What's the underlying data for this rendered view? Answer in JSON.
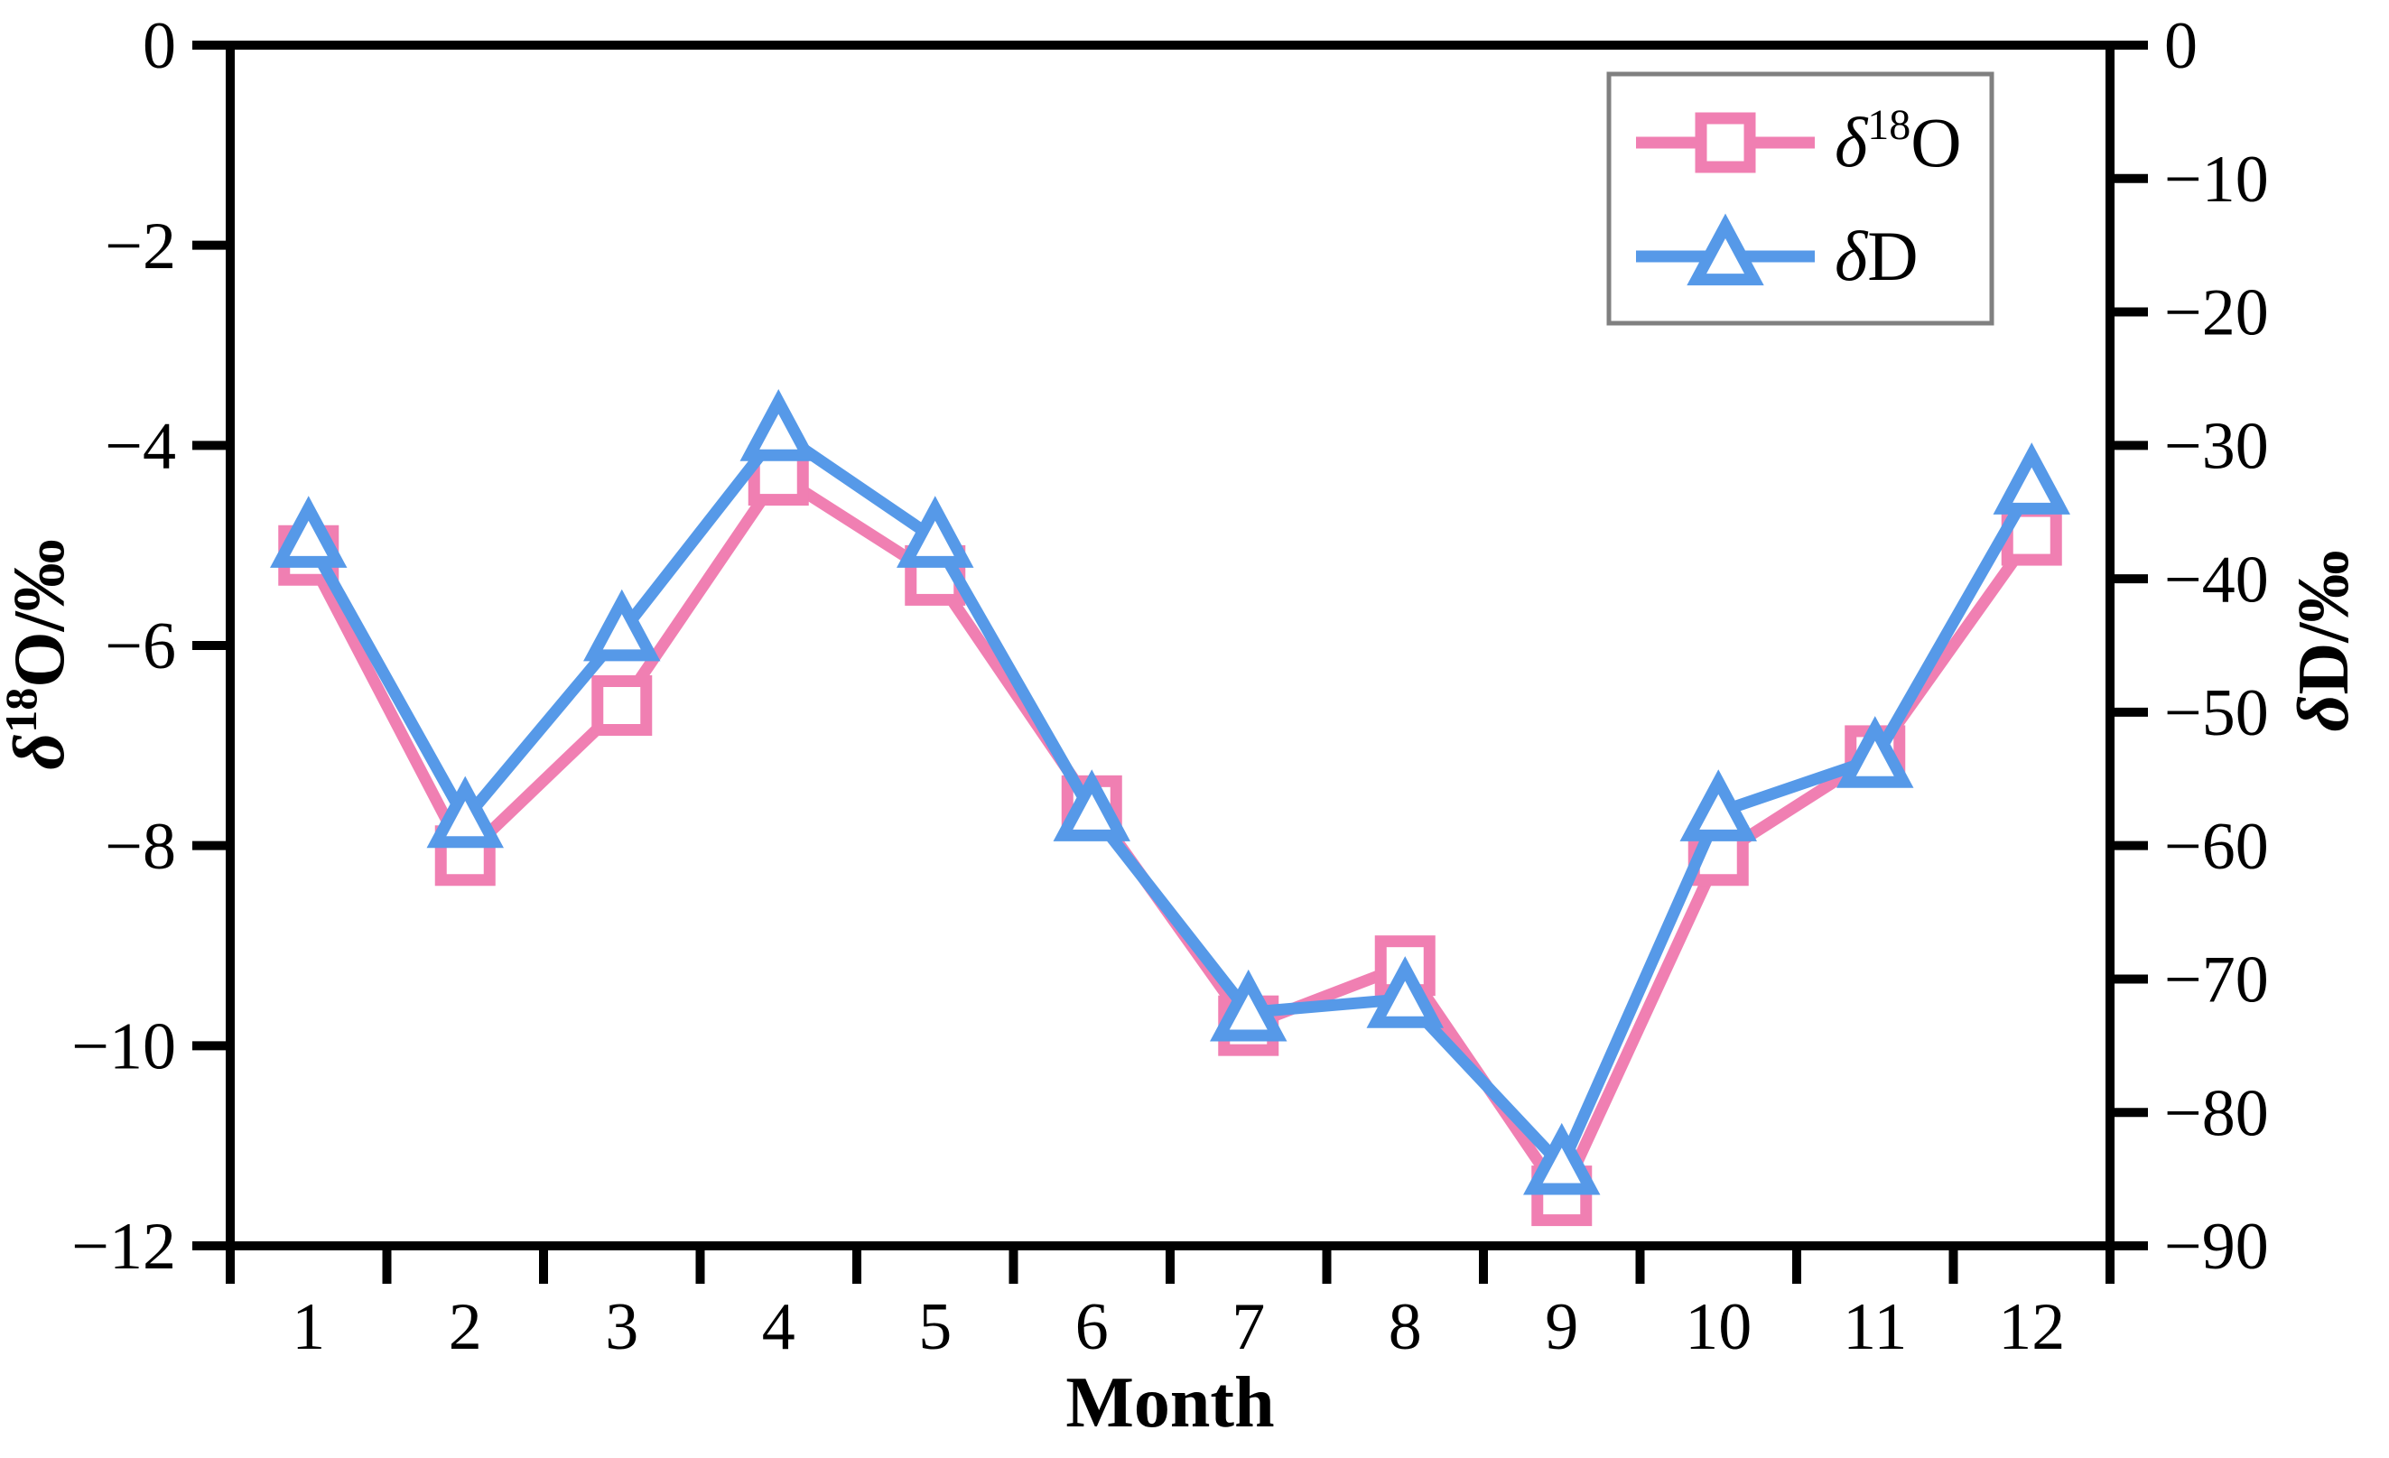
{
  "chart_data": {
    "type": "line",
    "title": "",
    "xlabel": "Month",
    "x": [
      1,
      2,
      3,
      4,
      5,
      6,
      7,
      8,
      9,
      10,
      11,
      12
    ],
    "xlim": [
      0.5,
      12.5
    ],
    "x_tick_labels": [
      "1",
      "2",
      "3",
      "4",
      "5",
      "6",
      "7",
      "8",
      "9",
      "10",
      "11",
      "12"
    ],
    "grid": false,
    "series": [
      {
        "name": "delta-18-O",
        "axis": "left",
        "marker": "square",
        "color": "#F07FB2",
        "values": [
          -5.1,
          -8.1,
          -6.6,
          -4.3,
          -5.3,
          -7.6,
          -9.8,
          -9.2,
          -11.5,
          -8.1,
          -7.1,
          -4.9
        ]
      },
      {
        "name": "delta-D",
        "axis": "right",
        "marker": "triangle-up",
        "color": "#5699E8",
        "values": [
          -37,
          -58,
          -44,
          -29,
          -37,
          -57.5,
          -72.5,
          -71.5,
          -84,
          -57.5,
          -53.5,
          -33
        ]
      }
    ],
    "axes": {
      "left": {
        "label": "δ18O/‰",
        "lim": [
          0,
          -12
        ],
        "ticks": [
          0,
          -2,
          -4,
          -6,
          -8,
          -10,
          -12
        ]
      },
      "right": {
        "label": "δD/‰",
        "lim": [
          0,
          -90
        ],
        "ticks": [
          0,
          -10,
          -20,
          -30,
          -40,
          -50,
          -60,
          -70,
          -80,
          -90
        ]
      }
    },
    "legend": {
      "position": "top-right",
      "entries": [
        {
          "series": 0,
          "label": "δ18O"
        },
        {
          "series": 1,
          "label": "δD"
        }
      ]
    }
  },
  "rich_labels": {
    "left_axis": [
      {
        "t": "δ",
        "italic": true
      },
      {
        "t": "18",
        "sup": true
      },
      {
        "t": "O/‰"
      }
    ],
    "right_axis": [
      {
        "t": "δ",
        "italic": true
      },
      {
        "t": "D/‰"
      }
    ],
    "legend": [
      [
        {
          "t": "δ",
          "italic": true
        },
        {
          "t": "18",
          "sup": true
        },
        {
          "t": "O"
        }
      ],
      [
        {
          "t": "δ",
          "italic": true
        },
        {
          "t": "D"
        }
      ]
    ]
  },
  "colors": {
    "axis": "#000000",
    "tick_label": "#000000",
    "series_o18": "#F07FB2",
    "series_d": "#5699E8",
    "legend_border": "#808080",
    "background": "#FFFFFF"
  }
}
